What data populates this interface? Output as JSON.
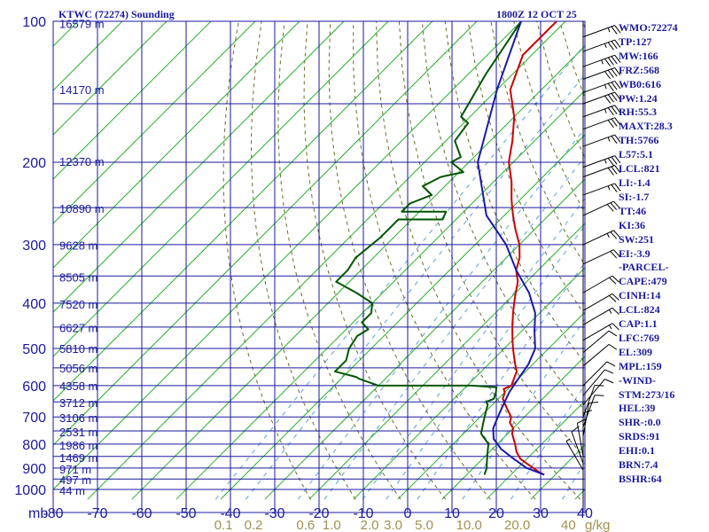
{
  "header": {
    "station": "KTWC (72274) Sounding",
    "time": "1800Z 12 OCT 25"
  },
  "indices": [
    "WMO:72274",
    "TP:127",
    "MW:166",
    "FRZ:568",
    "WB0:616",
    "PW:1.24",
    "RH:55.3",
    "MAXT:28.3",
    "TH:5766",
    "L57:5.1",
    "LCL:821",
    "LI:-1.4",
    "SI:-1.7",
    "TT:46",
    "KI:36",
    "SW:251",
    "EI:-3.9",
    "-PARCEL-",
    "CAPE:479",
    "CINH:14",
    "LCL:824",
    "CAP:1.1",
    "LFC:769",
    "EL:309",
    "MPL:159",
    "-WIND-",
    "STM:273/16",
    "HEL:39",
    "SHR-:0.0",
    "SRDS:91",
    "EHI:0.1",
    "BRN:7.4",
    "BSHR:64"
  ],
  "colors": {
    "grid": "#1a1a9c",
    "isotherm": "#2bb02b",
    "dry_adiabat": "#6a6a2a",
    "mixing_ratio": "#5aa0e0",
    "temperature": "#cc0000",
    "dewpoint": "#005500",
    "parcel": "#1a1aaa",
    "mixing_label": "#a09050"
  },
  "chart_data": {
    "type": "skew-t",
    "pressure_axis": {
      "unit": "mb",
      "levels": [
        100,
        200,
        300,
        400,
        500,
        600,
        700,
        800,
        900,
        1000
      ],
      "labels": [
        "100",
        "200",
        "300",
        "400",
        "500",
        "600",
        "700",
        "800",
        "900",
        "1000"
      ],
      "range": [
        100,
        1000
      ],
      "scale": "log"
    },
    "temperature_axis": {
      "unit": "C",
      "ticks": [
        -80,
        -70,
        -60,
        -50,
        -40,
        -30,
        -20,
        -10,
        0,
        10,
        20,
        30,
        40
      ],
      "labels": [
        "-80",
        "-70",
        "-60",
        "-50",
        "-40",
        "-30",
        "-20",
        "-10",
        "0",
        "10",
        "20",
        "30",
        "40"
      ],
      "range": [
        -80,
        40
      ],
      "unit_label": "mb"
    },
    "mixing_ratio_labels": {
      "values": [
        0.1,
        0.2,
        0.6,
        1.0,
        2.0,
        3.0,
        5.0,
        10.0,
        20.0,
        40
      ],
      "labels": [
        "0.1",
        "0.2",
        "0.6",
        "1.0",
        "2.0",
        "3.0",
        "5.0",
        "10.0",
        "20.0",
        "40"
      ],
      "unit_label": "g/kg"
    },
    "height_labels": [
      {
        "p": 101,
        "text": "16579 m"
      },
      {
        "p": 140,
        "text": "14170 m"
      },
      {
        "p": 199,
        "text": "12370 m"
      },
      {
        "p": 251,
        "text": "10890 m"
      },
      {
        "p": 301,
        "text": "9628 m"
      },
      {
        "p": 352,
        "text": "8505 m"
      },
      {
        "p": 402,
        "text": "7520 m"
      },
      {
        "p": 451,
        "text": "6627 m"
      },
      {
        "p": 500,
        "text": "5810 m"
      },
      {
        "p": 550,
        "text": "5056 m"
      },
      {
        "p": 601,
        "text": "4358 m"
      },
      {
        "p": 652,
        "text": "3712 m"
      },
      {
        "p": 703,
        "text": "3106 m"
      },
      {
        "p": 753,
        "text": "2531 m"
      },
      {
        "p": 804,
        "text": "1986 m"
      },
      {
        "p": 854,
        "text": "1469 m"
      },
      {
        "p": 904,
        "text": "971 m"
      },
      {
        "p": 954,
        "text": "497 m"
      },
      {
        "p": 1004,
        "text": "44 m"
      }
    ],
    "series": [
      {
        "name": "temperature",
        "points": [
          [
            100,
            -72
          ],
          [
            118,
            -72
          ],
          [
            140,
            -67
          ],
          [
            160,
            -60
          ],
          [
            180,
            -55
          ],
          [
            200,
            -51
          ],
          [
            220,
            -46
          ],
          [
            240,
            -42
          ],
          [
            250,
            -40
          ],
          [
            265,
            -37
          ],
          [
            280,
            -34
          ],
          [
            300,
            -30
          ],
          [
            320,
            -27
          ],
          [
            340,
            -25
          ],
          [
            360,
            -22
          ],
          [
            380,
            -20
          ],
          [
            400,
            -18
          ],
          [
            420,
            -16
          ],
          [
            440,
            -14
          ],
          [
            460,
            -12
          ],
          [
            480,
            -10
          ],
          [
            500,
            -8
          ],
          [
            520,
            -6
          ],
          [
            540,
            -4
          ],
          [
            560,
            -2
          ],
          [
            580,
            -1
          ],
          [
            600,
            0
          ],
          [
            610,
            -1
          ],
          [
            620,
            0
          ],
          [
            640,
            1
          ],
          [
            660,
            3
          ],
          [
            680,
            5
          ],
          [
            700,
            7
          ],
          [
            720,
            8
          ],
          [
            740,
            10
          ],
          [
            760,
            11
          ],
          [
            780,
            12.5
          ],
          [
            800,
            14
          ],
          [
            830,
            16
          ],
          [
            860,
            18.5
          ],
          [
            880,
            21
          ],
          [
            900,
            23.5
          ],
          [
            920,
            26
          ],
          [
            930,
            27.5
          ]
        ]
      },
      {
        "name": "dewpoint",
        "points": [
          [
            100,
            -80
          ],
          [
            130,
            -76
          ],
          [
            160,
            -72
          ],
          [
            165,
            -69
          ],
          [
            180,
            -68
          ],
          [
            195,
            -63
          ],
          [
            200,
            -64
          ],
          [
            210,
            -59
          ],
          [
            215,
            -63
          ],
          [
            225,
            -65
          ],
          [
            235,
            -61
          ],
          [
            245,
            -64
          ],
          [
            255,
            -64
          ],
          [
            255,
            -54
          ],
          [
            265,
            -53
          ],
          [
            265,
            -63
          ],
          [
            290,
            -63
          ],
          [
            320,
            -64
          ],
          [
            340,
            -63
          ],
          [
            360,
            -63
          ],
          [
            380,
            -56
          ],
          [
            400,
            -50
          ],
          [
            420,
            -48
          ],
          [
            440,
            -48
          ],
          [
            455,
            -45
          ],
          [
            470,
            -46
          ],
          [
            500,
            -45
          ],
          [
            530,
            -43
          ],
          [
            560,
            -43
          ],
          [
            575,
            -37
          ],
          [
            580,
            -36
          ],
          [
            600,
            -30
          ],
          [
            600,
            -9
          ],
          [
            605,
            -3
          ],
          [
            620,
            -2
          ],
          [
            640,
            -1
          ],
          [
            650,
            -2
          ],
          [
            660,
            -1
          ],
          [
            680,
            0
          ],
          [
            700,
            1
          ],
          [
            720,
            2
          ],
          [
            760,
            4
          ],
          [
            780,
            6
          ],
          [
            800,
            8
          ],
          [
            820,
            9
          ],
          [
            840,
            10
          ],
          [
            860,
            11
          ],
          [
            880,
            12
          ],
          [
            900,
            13
          ],
          [
            930,
            14
          ]
        ]
      },
      {
        "name": "parcel",
        "points": [
          [
            100,
            -80
          ],
          [
            140,
            -70
          ],
          [
            200,
            -58
          ],
          [
            260,
            -44
          ],
          [
            300,
            -33
          ],
          [
            340,
            -25
          ],
          [
            380,
            -17
          ],
          [
            420,
            -11
          ],
          [
            460,
            -7
          ],
          [
            500,
            -3
          ],
          [
            540,
            -1
          ],
          [
            580,
            0
          ],
          [
            600,
            0.5
          ],
          [
            620,
            1
          ],
          [
            660,
            2.5
          ],
          [
            700,
            4
          ],
          [
            740,
            5.5
          ],
          [
            780,
            8
          ],
          [
            820,
            12
          ],
          [
            860,
            17
          ],
          [
            900,
            22
          ],
          [
            930,
            27.5
          ]
        ]
      }
    ],
    "wind_barbs": [
      {
        "p": 108,
        "dir": 250,
        "kt": 25
      },
      {
        "p": 116,
        "dir": 250,
        "kt": 35
      },
      {
        "p": 125,
        "dir": 250,
        "kt": 45
      },
      {
        "p": 133,
        "dir": 250,
        "kt": 40
      },
      {
        "p": 142,
        "dir": 250,
        "kt": 35
      },
      {
        "p": 150,
        "dir": 250,
        "kt": 40
      },
      {
        "p": 160,
        "dir": 250,
        "kt": 35
      },
      {
        "p": 170,
        "dir": 250,
        "kt": 30
      },
      {
        "p": 185,
        "dir": 250,
        "kt": 25
      },
      {
        "p": 205,
        "dir": 250,
        "kt": 35
      },
      {
        "p": 215,
        "dir": 250,
        "kt": 30
      },
      {
        "p": 235,
        "dir": 250,
        "kt": 25
      },
      {
        "p": 260,
        "dir": 245,
        "kt": 30
      },
      {
        "p": 300,
        "dir": 245,
        "kt": 25
      },
      {
        "p": 330,
        "dir": 245,
        "kt": 20
      },
      {
        "p": 380,
        "dir": 240,
        "kt": 20
      },
      {
        "p": 415,
        "dir": 240,
        "kt": 20
      },
      {
        "p": 445,
        "dir": 240,
        "kt": 15
      },
      {
        "p": 480,
        "dir": 240,
        "kt": 15
      },
      {
        "p": 510,
        "dir": 230,
        "kt": 10
      },
      {
        "p": 545,
        "dir": 230,
        "kt": 10
      },
      {
        "p": 600,
        "dir": 225,
        "kt": 10
      },
      {
        "p": 630,
        "dir": 220,
        "kt": 10
      },
      {
        "p": 660,
        "dir": 220,
        "kt": 10
      },
      {
        "p": 700,
        "dir": 200,
        "kt": 10
      },
      {
        "p": 735,
        "dir": 200,
        "kt": 10
      },
      {
        "p": 770,
        "dir": 190,
        "kt": 10
      },
      {
        "p": 810,
        "dir": 180,
        "kt": 10
      },
      {
        "p": 850,
        "dir": 170,
        "kt": 10
      },
      {
        "p": 880,
        "dir": 160,
        "kt": 10
      },
      {
        "p": 910,
        "dir": 150,
        "kt": 5
      }
    ]
  }
}
